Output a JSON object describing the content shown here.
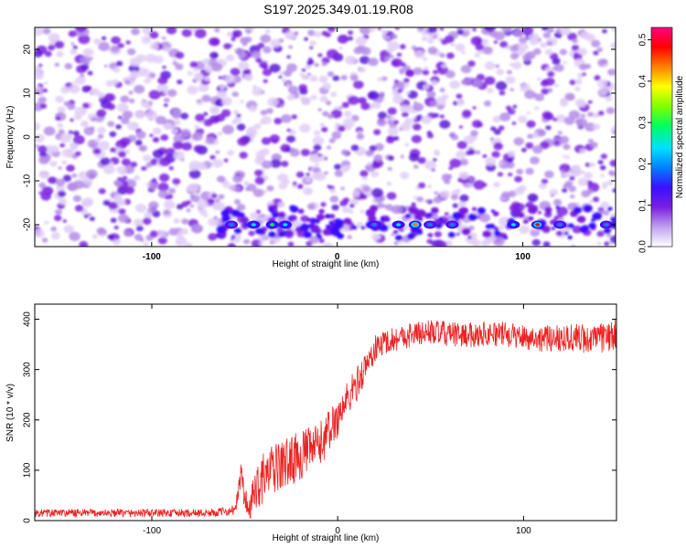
{
  "title": "S197.2025.349.01.19.R08",
  "chart_data": [
    {
      "type": "heatmap",
      "xlabel": "Height of straight line (km)",
      "ylabel": "Frequency (Hz)",
      "xlim": [
        -163,
        150
      ],
      "ylim": [
        -25,
        25
      ],
      "xticks": [
        "-100",
        "0",
        "100"
      ],
      "xtick_values": [
        -100,
        0,
        100
      ],
      "yticks": [
        "20",
        "10",
        "0",
        "-10",
        "-20"
      ],
      "ytick_values": [
        20,
        10,
        0,
        -10,
        -20
      ],
      "colorbar": {
        "label": "Normalized spectral amplitude",
        "range": [
          0.0,
          0.53
        ],
        "ticks": [
          "0.0",
          "0.1",
          "0.2",
          "0.3",
          "0.4",
          "0.5"
        ],
        "tick_values": [
          0.0,
          0.1,
          0.2,
          0.3,
          0.4,
          0.5
        ],
        "colormap": [
          "#ffffff",
          "#c0a0f0",
          "#7a1fe0",
          "#3a10ff",
          "#0080ff",
          "#00e0ff",
          "#00ff60",
          "#80ff00",
          "#ffff00",
          "#ff8000",
          "#ff0000",
          "#ff0080"
        ]
      },
      "hotspots": [
        {
          "x": -57,
          "y": -20,
          "value": 0.2
        },
        {
          "x": -45,
          "y": -20,
          "value": 0.22
        },
        {
          "x": -35,
          "y": -20,
          "value": 0.3
        },
        {
          "x": -28,
          "y": -20,
          "value": 0.25
        },
        {
          "x": 20,
          "y": -20,
          "value": 0.2
        },
        {
          "x": 33,
          "y": -20,
          "value": 0.22
        },
        {
          "x": 42,
          "y": -20,
          "value": 0.45
        },
        {
          "x": 50,
          "y": -20,
          "value": 0.2
        },
        {
          "x": 62,
          "y": -20,
          "value": 0.18
        },
        {
          "x": 95,
          "y": -20,
          "value": 0.22
        },
        {
          "x": 108,
          "y": -20,
          "value": 0.48
        },
        {
          "x": 120,
          "y": -20,
          "value": 0.2
        },
        {
          "x": 145,
          "y": -20,
          "value": 0.18
        }
      ]
    },
    {
      "type": "line",
      "xlabel": "Height of straight line (km)",
      "ylabel": "SNR (10 * v/v)",
      "xlim": [
        -163,
        150
      ],
      "ylim": [
        0,
        430
      ],
      "xticks": [
        "-100",
        "0",
        "100"
      ],
      "xtick_values": [
        -100,
        0,
        100
      ],
      "yticks": [
        "400",
        "300",
        "200",
        "100",
        "0"
      ],
      "ytick_values": [
        400,
        300,
        200,
        100,
        0
      ],
      "color": "#ee2222",
      "series": [
        {
          "x": [
            -163,
            -150,
            -130,
            -110,
            -90,
            -70,
            -60,
            -55,
            -52,
            -50,
            -47,
            -45,
            -40,
            -35,
            -30,
            -25,
            -20,
            -15,
            -10,
            -5,
            0,
            5,
            10,
            15,
            20,
            25,
            30,
            35,
            40,
            50,
            60,
            70,
            80,
            90,
            100,
            110,
            120,
            130,
            140,
            150
          ],
          "y": [
            15,
            15,
            15,
            15,
            15,
            15,
            18,
            22,
            95,
            40,
            20,
            60,
            85,
            100,
            110,
            120,
            130,
            140,
            150,
            175,
            205,
            240,
            270,
            305,
            340,
            355,
            360,
            365,
            370,
            375,
            370,
            368,
            372,
            370,
            365,
            360,
            365,
            362,
            360,
            370
          ],
          "noise": [
            8,
            8,
            8,
            8,
            8,
            8,
            8,
            10,
            30,
            30,
            25,
            45,
            50,
            50,
            50,
            50,
            50,
            45,
            45,
            45,
            40,
            38,
            35,
            30,
            28,
            25,
            25,
            25,
            25,
            25,
            25,
            25,
            25,
            25,
            25,
            25,
            30,
            30,
            30,
            30
          ]
        }
      ]
    }
  ]
}
